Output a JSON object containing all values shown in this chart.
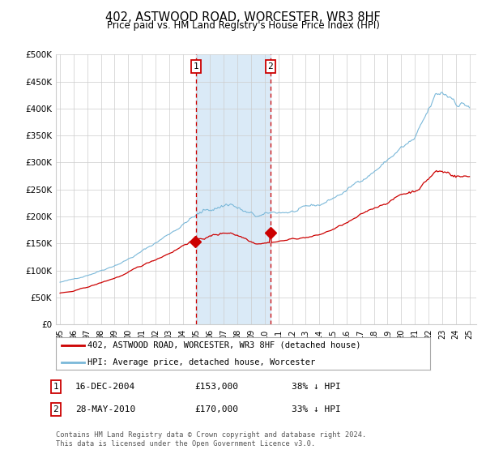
{
  "title": "402, ASTWOOD ROAD, WORCESTER, WR3 8HF",
  "subtitle": "Price paid vs. HM Land Registry's House Price Index (HPI)",
  "ylim": [
    0,
    500000
  ],
  "yticks": [
    0,
    50000,
    100000,
    150000,
    200000,
    250000,
    300000,
    350000,
    400000,
    450000,
    500000
  ],
  "ytick_labels": [
    "£0",
    "£50K",
    "£100K",
    "£150K",
    "£200K",
    "£250K",
    "£300K",
    "£350K",
    "£400K",
    "£450K",
    "£500K"
  ],
  "hpi_color": "#7ab8d9",
  "price_color": "#cc0000",
  "purchase1_date_num": 2004.958,
  "purchase1_price": 153000,
  "purchase1_label": "1",
  "purchase2_date_num": 2010.41,
  "purchase2_price": 170000,
  "purchase2_label": "2",
  "shade_color": "#daeaf7",
  "vline_color": "#cc0000",
  "legend_label_price": "402, ASTWOOD ROAD, WORCESTER, WR3 8HF (detached house)",
  "legend_label_hpi": "HPI: Average price, detached house, Worcester",
  "footer1": "Contains HM Land Registry data © Crown copyright and database right 2024.",
  "footer2": "This data is licensed under the Open Government Licence v3.0.",
  "table_row1": [
    "1",
    "16-DEC-2004",
    "£153,000",
    "38% ↓ HPI"
  ],
  "table_row2": [
    "2",
    "28-MAY-2010",
    "£170,000",
    "33% ↓ HPI"
  ],
  "background_color": "#ffffff",
  "grid_color": "#cccccc",
  "xlim_left": 1994.7,
  "xlim_right": 2025.5,
  "xtick_years": [
    1995,
    1996,
    1997,
    1998,
    1999,
    2000,
    2001,
    2002,
    2003,
    2004,
    2005,
    2006,
    2007,
    2008,
    2009,
    2010,
    2011,
    2012,
    2013,
    2014,
    2015,
    2016,
    2017,
    2018,
    2019,
    2020,
    2021,
    2022,
    2023,
    2024,
    2025
  ]
}
